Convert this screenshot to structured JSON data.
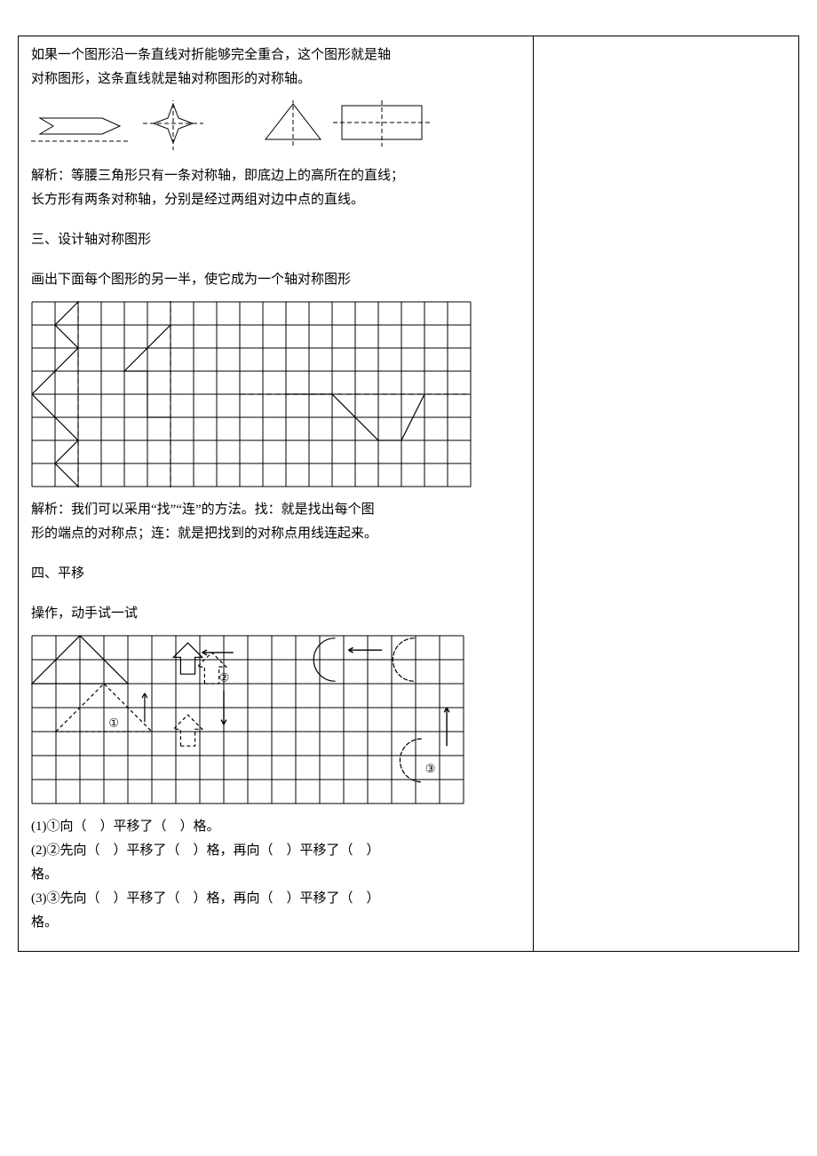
{
  "intro": {
    "line1": "如果一个图形沿一条直线对折能够完全重合，这个图形就是轴",
    "line2": "对称图形，这条直线就是轴对称图形的对称轴。"
  },
  "shapes_row": {
    "stroke": "#000000",
    "dash": "4 3",
    "shapes": [
      {
        "type": "arrow"
      },
      {
        "type": "star4"
      },
      {
        "type": "triangle"
      },
      {
        "type": "rectangle"
      }
    ]
  },
  "analysis1": {
    "line1": "解析：等腰三角形只有一条对称轴，即底边上的高所在的直线；",
    "line2": "长方形有两条对称轴，分别是经过两组对边中点的直线。"
  },
  "section3_heading": "三、设计轴对称图形",
  "section3_prompt": "画出下面每个图形的另一半，使它成为一个轴对称图形",
  "grid1": {
    "cols": 19,
    "rows": 8,
    "cell": 26,
    "stroke": "#000000",
    "origin_note": "three half-figures with vertical/horizontal dash axes"
  },
  "analysis2": {
    "line1": "解析：我们可以采用“找”“连”的方法。找：就是找出每个图",
    "line2": "形的端点的对称点；连：就是把找到的对称点用线连起来。"
  },
  "section4_heading": "四、平移",
  "section4_prompt": "操作，动手试一试",
  "grid2": {
    "cols": 18,
    "rows": 7,
    "cell": 27,
    "stroke": "#000000",
    "labels": {
      "one": "①",
      "two": "②",
      "three": "③"
    }
  },
  "questions": {
    "q1": "(1)①向（　）平移了（　）格。",
    "q2": "(2)②先向（　）平移了（　）格，再向（　）平移了（　）",
    "q2b": "格。",
    "q3": "(3)③先向（　）平移了（　）格，再向（　）平移了（　）",
    "q3b": "格。"
  },
  "colors": {
    "text": "#000000",
    "grid": "#000000",
    "dash": "#000000"
  }
}
